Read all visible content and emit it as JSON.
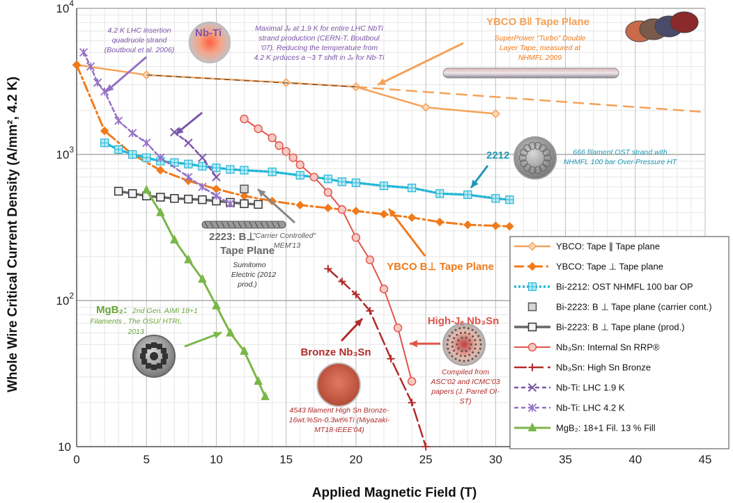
{
  "chart_data": {
    "type": "line",
    "title": "",
    "xlabel": "Applied Magnetic Field (T)",
    "ylabel": "Whole Wire Critical Current Density (A/mm², 4.2 K)",
    "xlim": [
      0,
      45
    ],
    "ylim": [
      10,
      10000
    ],
    "yscale": "log",
    "xticks": [
      "0",
      "5",
      "10",
      "15",
      "20",
      "25",
      "30",
      "35",
      "40",
      "45"
    ],
    "yticks": [
      {
        "base": "10",
        "exp": "",
        "value": 10
      },
      {
        "base": "10",
        "exp": "2",
        "value": 100
      },
      {
        "base": "10",
        "exp": "3",
        "value": 1000
      },
      {
        "base": "10",
        "exp": "4",
        "value": 10000
      }
    ],
    "series": [
      {
        "name": "YBCO: Tape ∥ Tape plane",
        "color": "#f4a259",
        "marker": "diamond-open",
        "dash": "solid",
        "width": 2.5,
        "x": [
          0,
          5,
          15,
          20,
          25,
          30
        ],
        "y": [
          4100,
          3500,
          3100,
          2900,
          2100,
          1900
        ]
      },
      {
        "name": "YBCO: Tape ⊥ Tape plane",
        "color": "#f07a1a",
        "marker": "diamond",
        "dash": "dashdot",
        "width": 3,
        "x": [
          0,
          2,
          4,
          6,
          8,
          10,
          12,
          14,
          16,
          18,
          20,
          22,
          24,
          26,
          28,
          30,
          31
        ],
        "y": [
          4100,
          1450,
          1000,
          780,
          660,
          580,
          520,
          480,
          450,
          430,
          410,
          390,
          370,
          345,
          330,
          325,
          322
        ]
      },
      {
        "name": "Bi-2212: OST NHMFL 100 bar OP",
        "color": "#22b7d6",
        "marker": "square-cross",
        "dash": "dot",
        "width": 3.5,
        "x": [
          2,
          3,
          4,
          5,
          6,
          7,
          8,
          9,
          10,
          11,
          12,
          14,
          16,
          18,
          19,
          20,
          22,
          24,
          26,
          28,
          30,
          31
        ],
        "y": [
          1200,
          1080,
          1000,
          950,
          900,
          880,
          860,
          830,
          810,
          790,
          780,
          760,
          720,
          680,
          650,
          640,
          610,
          590,
          540,
          530,
          500,
          490
        ]
      },
      {
        "name": "Bi-2223: B ⊥ Tape plane (carrier cont.)",
        "color": "#777777",
        "marker": "square-gray",
        "dash": "none",
        "width": 0,
        "x": [
          12
        ],
        "y": [
          580
        ]
      },
      {
        "name": "Bi-2223: B ⊥ Tape plane (prod.)",
        "color": "#666666",
        "marker": "square-open",
        "dash": "solid",
        "width": 3.5,
        "x": [
          3,
          4,
          5,
          6,
          7,
          8,
          9,
          10,
          11,
          12,
          13
        ],
        "y": [
          560,
          540,
          520,
          510,
          500,
          495,
          490,
          480,
          470,
          460,
          455
        ]
      },
      {
        "name": "Nb₃Sn: Internal Sn RRP®",
        "color": "#e0534a",
        "marker": "circle-open",
        "dash": "solid",
        "width": 2,
        "x": [
          12,
          13,
          14,
          14.5,
          15,
          15.5,
          16,
          17,
          18,
          19,
          20,
          21,
          22,
          23,
          24
        ],
        "y": [
          1750,
          1500,
          1300,
          1150,
          1050,
          950,
          850,
          700,
          550,
          420,
          270,
          190,
          120,
          65,
          28
        ]
      },
      {
        "name": "Nb₃Sn: High Sn Bronze",
        "color": "#b22a2a",
        "marker": "plus",
        "dash": "longdash",
        "width": 2.5,
        "x": [
          18,
          19,
          20,
          21,
          22.5,
          24,
          25
        ],
        "y": [
          165,
          135,
          110,
          85,
          40,
          20,
          10
        ]
      },
      {
        "name": "Nb-Ti: LHC 1.9 K",
        "color": "#7a55a8",
        "marker": "x",
        "dash": "shortdash",
        "width": 2.5,
        "x": [
          7,
          8,
          9,
          10
        ],
        "y": [
          1420,
          1200,
          950,
          700
        ]
      },
      {
        "name": "Nb-Ti: LHC 4.2 K",
        "color": "#9472c4",
        "marker": "asterisk",
        "dash": "shortdash",
        "width": 2.5,
        "x": [
          0.5,
          1,
          1.5,
          2,
          3,
          4,
          5,
          6,
          8,
          9,
          10,
          11
        ],
        "y": [
          5000,
          4000,
          3100,
          2700,
          1700,
          1400,
          1200,
          950,
          700,
          600,
          520,
          460
        ]
      },
      {
        "name": "MgB₂: 18+1 Fil. 13 % Fill",
        "color": "#7ab648",
        "marker": "triangle",
        "dash": "solid",
        "width": 3,
        "x": [
          5,
          6,
          7,
          8,
          9,
          10,
          11,
          12,
          13,
          13.5
        ],
        "y": [
          570,
          400,
          260,
          190,
          140,
          92,
          60,
          45,
          28,
          22
        ]
      }
    ],
    "annotations": {
      "nbti_title": "Nb-Ti",
      "nbti_note1": [
        "4.2 K LHC insertion",
        "quadruole strand",
        "(Boutboul et al. 2006)"
      ],
      "nbti_note2": [
        "Maximal Jₑ at 1.9 K for entire LHC NbTi",
        "strand production (CERN-T. Boutboul",
        "'07). Reducing the temperature from",
        "4.2 K prduces a ~3 T shift in Jₑ for Nb-Ti"
      ],
      "ybco_par_title": "YBCO B‖ Tape Plane",
      "ybco_par_note": [
        "SuperPower \"Turbo\" Double",
        "Layer Tape, measured at",
        "NHMFL 2009"
      ],
      "bi2212_title": "2212",
      "bi2212_note": [
        "666 filament OST strand with",
        "NHMFL 100 bar Over-Pressure HT"
      ],
      "bi2223_title": "2223: B⊥",
      "bi2223_title2": "Tape Plane",
      "bi2223_carrier": [
        "\"Carrier Controlled\"",
        "MEM'13"
      ],
      "bi2223_note": [
        "Sumitomo",
        "Electric (2012",
        "prod.)"
      ],
      "ybco_perp_title": "YBCO B⊥ Tape Plane",
      "mgb2_title": "MgB₂:",
      "mgb2_note": [
        "2nd Gen. AIMI 18+1",
        "Filaments , The OSU/ HTRI,",
        "2013"
      ],
      "bronze_title": "Bronze Nb₃Sn",
      "bronze_note": [
        "4543 filament High Sn Bronze-",
        "16wt.%Sn-0.3wt%Ti (Miyazaki-",
        "MT18-IEEE'04)"
      ],
      "rrp_title": "High-Jₑ Nb₃Sn",
      "rrp_note": [
        "Compiled from",
        "ASC'02 and ICMC'03",
        "papers (J. Parrell OI-",
        "ST)"
      ]
    }
  }
}
